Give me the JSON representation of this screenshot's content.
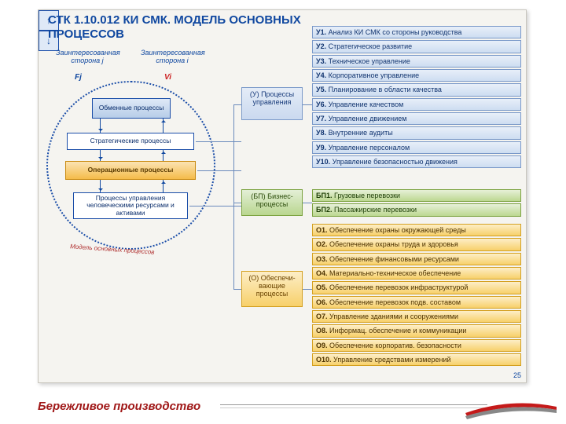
{
  "title": "СТК 1.10.012 КИ СМК. МОДЕЛЬ ОСНОВНЫХ ПРОЦЕССОВ",
  "stakeholder_j": "Заинтересованная сторона  j",
  "stakeholder_i": "Заинтересованная сторона i",
  "fj": "Fj",
  "vi": "Vi",
  "left_boxes": {
    "obmen": "Обменные процессы",
    "strat": "Стратегические процессы",
    "oper": "Операционные процессы",
    "res": "Процессы управления человеческими ресурсами и активами"
  },
  "circle_label": "Модель основных процессов",
  "arrows": {
    "up": "↑",
    "down": "↓"
  },
  "categories": {
    "u": "(У) Процессы управления",
    "bp": "(БП) Бизнес-процессы",
    "o": "(О) Обеспечи-вающие процессы"
  },
  "u_items": [
    {
      "code": "У1.",
      "text": "Анализ КИ СМК со стороны руководства"
    },
    {
      "code": "У2.",
      "text": "Стратегическое развитие"
    },
    {
      "code": "У3.",
      "text": "Техническое управление"
    },
    {
      "code": "У4.",
      "text": "Корпоративное управление"
    },
    {
      "code": "У5.",
      "text": "Планирование в области качества"
    },
    {
      "code": "У6.",
      "text": "Управление качеством"
    },
    {
      "code": "У7.",
      "text": "Управление движением"
    },
    {
      "code": "У8.",
      "text": "Внутренние аудиты"
    },
    {
      "code": "У9.",
      "text": "Управление персоналом"
    },
    {
      "code": "У10.",
      "text": "Управление безопасностью движения"
    }
  ],
  "bp_items": [
    {
      "code": "БП1.",
      "text": "Грузовые перевозки"
    },
    {
      "code": "БП2.",
      "text": "Пассажирские перевозки"
    }
  ],
  "o_items": [
    {
      "code": "О1.",
      "text": "Обеспечение охраны окружающей среды"
    },
    {
      "code": "О2.",
      "text": "Обеспечение охраны труда и здоровья"
    },
    {
      "code": "О3.",
      "text": "Обеспечение финансовыми ресурсами"
    },
    {
      "code": "О4.",
      "text": "Материально-техническое обеспечение"
    },
    {
      "code": "О5.",
      "text": "Обеспечение перевозок инфраструктурой"
    },
    {
      "code": "О6.",
      "text": "Обеспечение перевозок подв. составом"
    },
    {
      "code": "О7.",
      "text": "Управление зданиями и сооружениями"
    },
    {
      "code": "О8.",
      "text": "Информац. обеспечение и коммуникации"
    },
    {
      "code": "О9.",
      "text": "Обеспечение корпоратив. безопасности"
    },
    {
      "code": "О10.",
      "text": "Управление средствами измерений"
    }
  ],
  "page_number": "25",
  "footer": "Бережливое производство",
  "colors": {
    "title": "#1048a0",
    "u_bg": "#cad9ef",
    "bp_bg": "#b9d68f",
    "o_bg": "#f7d06a",
    "footer": "#a01818"
  }
}
